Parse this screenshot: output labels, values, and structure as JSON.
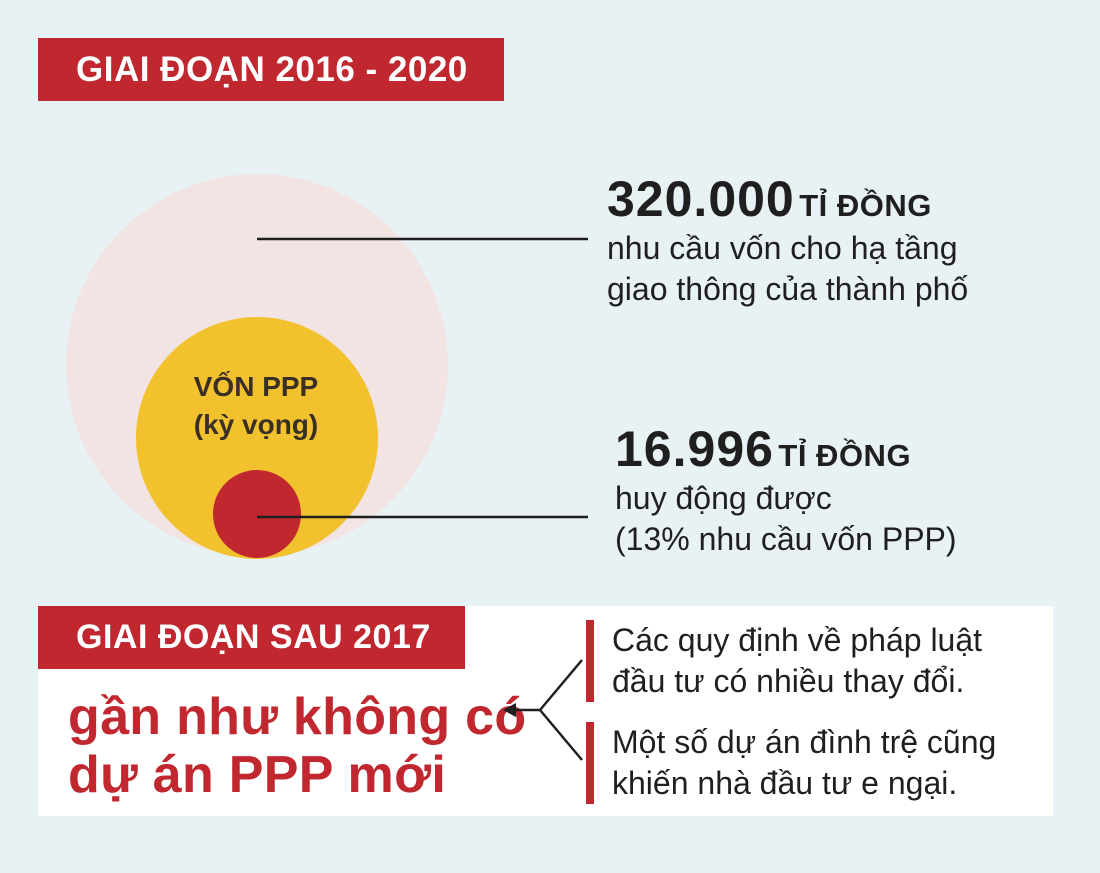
{
  "period_top": {
    "title": "GIAI ĐOẠN 2016 - 2020"
  },
  "circles": {
    "inner_label_line1": "VỐN PPP",
    "inner_label_line2": "(kỳ vọng)"
  },
  "figures": [
    {
      "number": "320.000",
      "unit": "TỈ ĐỒNG",
      "line1": "nhu cầu vốn cho hạ tầng",
      "line2": "giao thông của thành phố"
    },
    {
      "number": "16.996",
      "unit": "TỈ ĐỒNG",
      "line1": "huy động được",
      "line2": "(13% nhu cầu vốn PPP)"
    }
  ],
  "period_bottom": {
    "title": "GIAI ĐOẠN SAU 2017",
    "headline_line1": "gần như không có",
    "headline_line2": "dự án PPP mới",
    "reasons": [
      {
        "line1": "Các quy định về pháp luật",
        "line2": "đầu tư có nhiều thay đổi."
      },
      {
        "line1": "Một số dự án đình trệ cũng",
        "line2": "khiến nhà đầu tư e ngại."
      }
    ]
  },
  "colors": {
    "background": "#e8f1f4",
    "accent_red": "#c0272f",
    "outer_circle": "#f2e4e2",
    "middle_circle": "#f2c12e",
    "inner_circle": "#c0272f",
    "text_dark": "#1f1f1f"
  }
}
